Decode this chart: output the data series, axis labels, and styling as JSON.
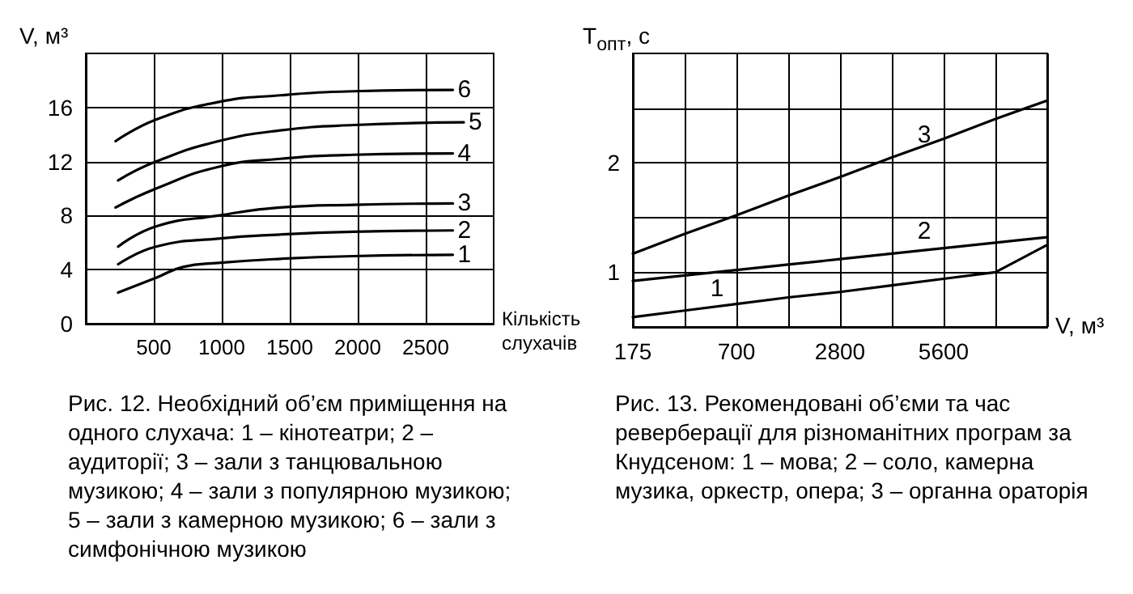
{
  "chart_data": [
    {
      "type": "line",
      "xlabel": "Кількість слухачів",
      "ylabel": "V, м³",
      "xlim": [
        0,
        3000
      ],
      "xticks": [
        500,
        1000,
        1500,
        2000,
        2500
      ],
      "ylim": [
        0,
        20
      ],
      "yticks": [
        0,
        4,
        8,
        12,
        16
      ],
      "grid": true,
      "legend": false,
      "marker": "none",
      "line_style": "solid",
      "annotations": [
        "Рис. 12. Необхідний об’єм приміщення на одного слухача: 1 – кінотеатри; 2 – аудиторії; 3 – зали з танцювальною музикою; 4 – зали з популярною музикою; 5 – зали з камерною музикою; 6 – зали з симфонічною музикою"
      ],
      "series": [
        {
          "name": "1",
          "color": "#000000",
          "x": [
            238,
            517,
            715,
            974,
            1430,
            1967,
            2700
          ],
          "values": [
            2.3,
            3.4,
            4.2,
            4.5,
            4.8,
            5.0,
            5.1
          ]
        },
        {
          "name": "2",
          "color": "#000000",
          "x": [
            238,
            517,
            974,
            1430,
            1967,
            2700
          ],
          "values": [
            4.4,
            5.7,
            6.3,
            6.6,
            6.8,
            6.9
          ]
        },
        {
          "name": "3",
          "color": "#000000",
          "x": [
            238,
            517,
            974,
            1430,
            1967,
            2700
          ],
          "values": [
            5.7,
            7.2,
            8.0,
            8.6,
            8.8,
            8.9
          ]
        },
        {
          "name": "4",
          "color": "#000000",
          "x": [
            219,
            517,
            974,
            1430,
            1967,
            2700
          ],
          "values": [
            8.6,
            10.0,
            11.6,
            12.2,
            12.5,
            12.6
          ]
        },
        {
          "name": "5",
          "color": "#000000",
          "x": [
            238,
            517,
            974,
            1430,
            1967,
            2780
          ],
          "values": [
            10.6,
            12.0,
            13.5,
            14.3,
            14.7,
            14.9
          ]
        },
        {
          "name": "6",
          "color": "#000000",
          "x": [
            219,
            517,
            974,
            1430,
            1967,
            2700
          ],
          "values": [
            13.5,
            15.1,
            16.4,
            16.9,
            17.2,
            17.3
          ]
        }
      ]
    },
    {
      "type": "line",
      "xlabel": "V, м³",
      "ylabel": "T$_{опт}$, с",
      "categories": [
        "175",
        null,
        "700",
        null,
        "2800",
        null,
        "5600",
        null,
        null
      ],
      "ylim": [
        0.5,
        3
      ],
      "yticks": [
        {
          "value": 1,
          "label": "1"
        },
        {
          "value": 1.5,
          "label": null
        },
        {
          "value": 2,
          "label": "2"
        },
        {
          "value": 2.5,
          "label": null
        }
      ],
      "grid": true,
      "legend": false,
      "marker": "none",
      "line_style": "solid",
      "annotations": [
        "Рис. 13. Рекомендовані об’єми та час реверберації для різноманітних програм за Кнудсеном: 1 – мова; 2 – соло, камерна музика, оркестр, опера; 3 – органна ораторія"
      ],
      "series": [
        {
          "name": "1",
          "color": "#000000",
          "values": [
            0.59,
            0.65,
            0.71,
            0.77,
            0.82,
            0.88,
            0.94,
            1.0,
            1.25
          ]
        },
        {
          "name": "2",
          "color": "#000000",
          "values": [
            0.92,
            0.97,
            1.02,
            1.07,
            1.12,
            1.17,
            1.22,
            1.27,
            1.32
          ]
        },
        {
          "name": "3",
          "color": "#000000",
          "values": [
            1.17,
            1.35,
            1.52,
            1.7,
            1.87,
            2.05,
            2.22,
            2.4,
            2.57
          ]
        }
      ]
    }
  ]
}
